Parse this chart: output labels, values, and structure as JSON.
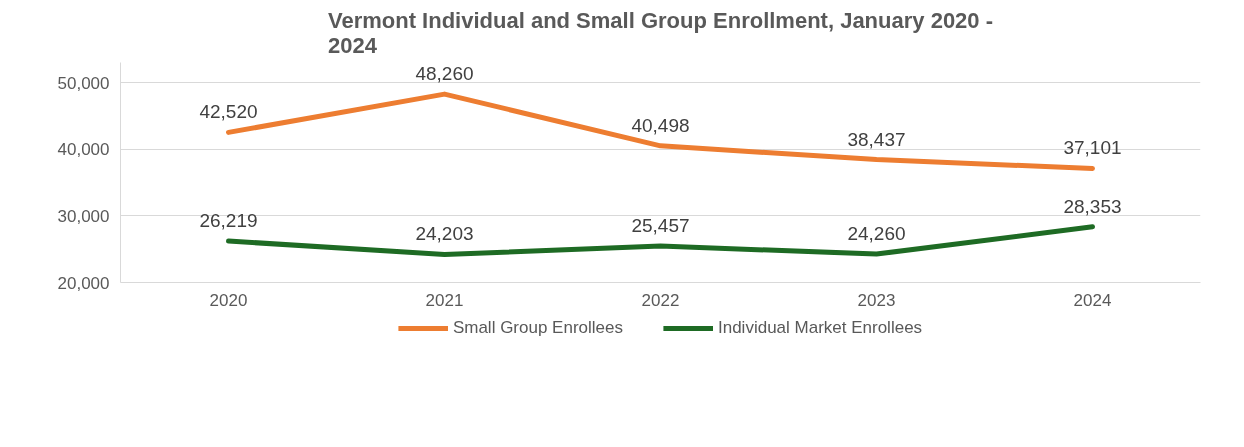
{
  "chart_data": {
    "type": "line",
    "title": "Vermont Individual and Small Group Enrollment, January 2020 - 2024",
    "categories": [
      "2020",
      "2021",
      "2022",
      "2023",
      "2024"
    ],
    "series": [
      {
        "name": "Small Group Enrollees",
        "color": "#ed7d31",
        "values": [
          42520,
          48260,
          40498,
          38437,
          37101
        ],
        "value_labels": [
          "42,520",
          "48,260",
          "40,498",
          "38,437",
          "37,101"
        ]
      },
      {
        "name": "Individual Market Enrollees",
        "color": "#1e6b24",
        "values": [
          26219,
          24203,
          25457,
          24260,
          28353
        ],
        "value_labels": [
          "26,219",
          "24,203",
          "25,457",
          "24,260",
          "28,353"
        ]
      }
    ],
    "ylim": [
      20000,
      53000
    ],
    "yticks": [
      {
        "value": 20000,
        "label": "20,000"
      },
      {
        "value": 30000,
        "label": "30,000"
      },
      {
        "value": 40000,
        "label": "40,000"
      },
      {
        "value": 50000,
        "label": "50,000"
      }
    ],
    "grid": "y",
    "legend": "bottom",
    "data_labels": true,
    "marker": "none",
    "line_style": "solid"
  }
}
